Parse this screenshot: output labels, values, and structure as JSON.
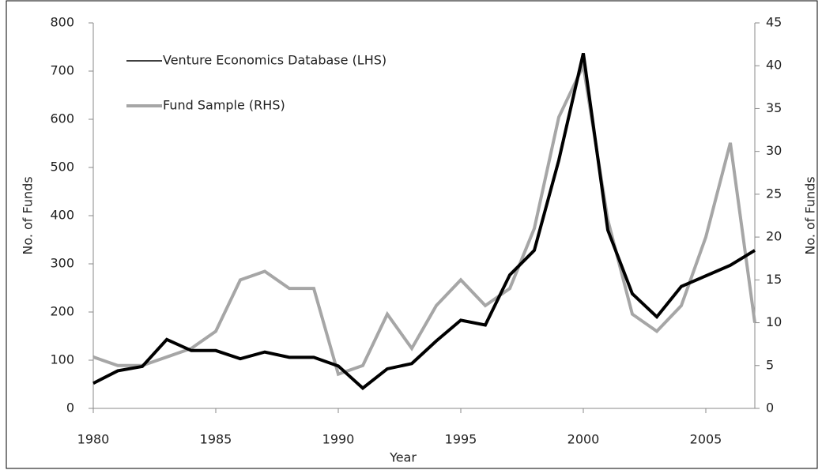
{
  "chart_data": {
    "type": "line",
    "xlabel": "Year",
    "ylabel": "No. of Funds",
    "y2label": "No. of Funds",
    "x": [
      1980,
      1981,
      1982,
      1983,
      1984,
      1985,
      1986,
      1987,
      1988,
      1989,
      1990,
      1991,
      1992,
      1993,
      1994,
      1995,
      1996,
      1997,
      1998,
      1999,
      2000,
      2001,
      2002,
      2003,
      2004,
      2005,
      2006,
      2007
    ],
    "xlim": [
      1980,
      2007
    ],
    "xticks": [
      1980,
      1985,
      1990,
      1995,
      2000,
      2005
    ],
    "ylim": [
      0,
      800
    ],
    "yticks": [
      0,
      100,
      200,
      300,
      400,
      500,
      600,
      700,
      800
    ],
    "y2lim": [
      0,
      45
    ],
    "y2ticks": [
      0,
      5,
      10,
      15,
      20,
      25,
      30,
      35,
      40,
      45
    ],
    "legend": "upper-left",
    "series": [
      {
        "name": "Venture Economics Database (LHS)",
        "color": "#000000",
        "axis": "y",
        "values": [
          52,
          78,
          87,
          143,
          120,
          120,
          103,
          117,
          106,
          106,
          88,
          42,
          82,
          93,
          140,
          183,
          173,
          277,
          328,
          515,
          737,
          370,
          238,
          190,
          253,
          275,
          297,
          328
        ]
      },
      {
        "name": "Fund Sample (RHS)",
        "color": "#a6a6a6",
        "axis": "y2",
        "values": [
          6,
          5,
          5,
          6,
          7,
          9,
          15,
          16,
          14,
          14,
          4,
          5,
          11,
          7,
          12,
          15,
          12,
          14,
          21,
          34,
          40,
          22,
          11,
          9,
          12,
          20,
          31,
          10
        ]
      }
    ]
  }
}
